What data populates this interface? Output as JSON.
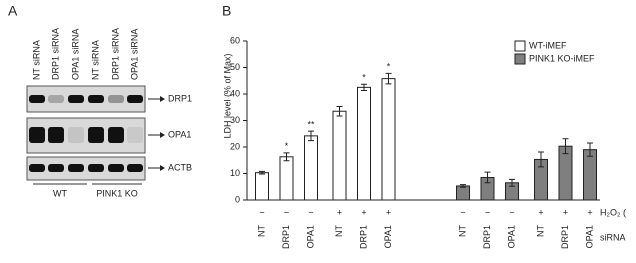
{
  "panel_a": {
    "label": "A",
    "lanes": [
      "NT siRNA",
      "DRP1 siRNA",
      "OPA1 siRNA",
      "NT siRNA",
      "DRP1 siRNA",
      "OPA1 siRNA"
    ],
    "bands": [
      "DRP1",
      "OPA1",
      "ACTB"
    ],
    "groups": [
      "WT",
      "PINK1 KO"
    ]
  },
  "chart_data": {
    "type": "bar",
    "panel_label": "B",
    "y_label": "LDH level (% of Max)",
    "categories": [
      "NT",
      "DRP1",
      "OPA1",
      "NT",
      "DRP1",
      "OPA1",
      "NT",
      "DRP1",
      "OPA1",
      "NT",
      "DRP1",
      "OPA1"
    ],
    "h2o2": [
      "−",
      "−",
      "−",
      "+",
      "+",
      "+",
      "−",
      "−",
      "−",
      "+",
      "+",
      "+"
    ],
    "h2o2_label": "H₂O₂ (",
    "categories_label": "siRNA",
    "series": [
      {
        "name": "WT-iMEF",
        "color": "#ffffff",
        "values": [
          10.3,
          16.3,
          24.2,
          33.5,
          42.5,
          45.8,
          null,
          null,
          null,
          null,
          null,
          null
        ],
        "errors": [
          0.5,
          1.5,
          1.8,
          1.8,
          1.2,
          2.0,
          null,
          null,
          null,
          null,
          null,
          null
        ],
        "significance": [
          null,
          "*",
          "**",
          null,
          "*",
          "*",
          null,
          null,
          null,
          null,
          null,
          null
        ]
      },
      {
        "name": "PINK1 KO-iMEF",
        "color": "#7f7f7f",
        "values": [
          null,
          null,
          null,
          null,
          null,
          null,
          5.3,
          8.5,
          6.5,
          15.3,
          20.3,
          19.0
        ],
        "errors": [
          null,
          null,
          null,
          null,
          null,
          null,
          0.5,
          2.0,
          1.3,
          2.8,
          2.8,
          2.5
        ],
        "significance": [
          null,
          null,
          null,
          null,
          null,
          null,
          null,
          null,
          null,
          null,
          null,
          null
        ]
      }
    ],
    "ylim": [
      0,
      60
    ],
    "yticks": [
      0,
      10,
      20,
      30,
      40,
      50,
      60
    ]
  }
}
